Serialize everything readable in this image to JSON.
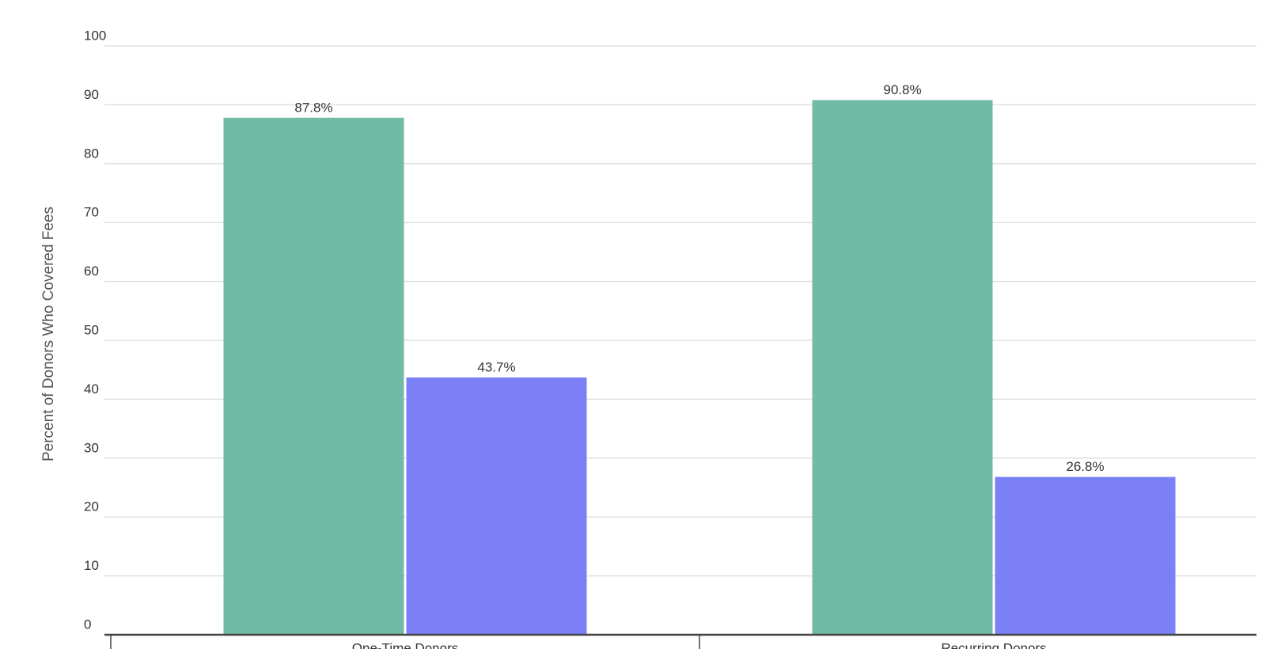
{
  "chart_data": {
    "type": "bar",
    "y_label": "Percent of Donors Who Covered Fees",
    "categories": [
      "One-Time Donors",
      "Recurring Donors"
    ],
    "series": [
      {
        "color": "#70baa6",
        "values": [
          87.8,
          90.8
        ],
        "value_labels": [
          "87.8%",
          "90.8%"
        ]
      },
      {
        "color": "#7b80f7",
        "values": [
          43.7,
          26.8
        ],
        "value_labels": [
          "43.7%",
          "26.8%"
        ]
      }
    ],
    "ylim": [
      0,
      100
    ],
    "yticks": [
      0,
      10,
      20,
      30,
      40,
      50,
      60,
      70,
      80,
      90,
      100
    ],
    "grid": true
  }
}
